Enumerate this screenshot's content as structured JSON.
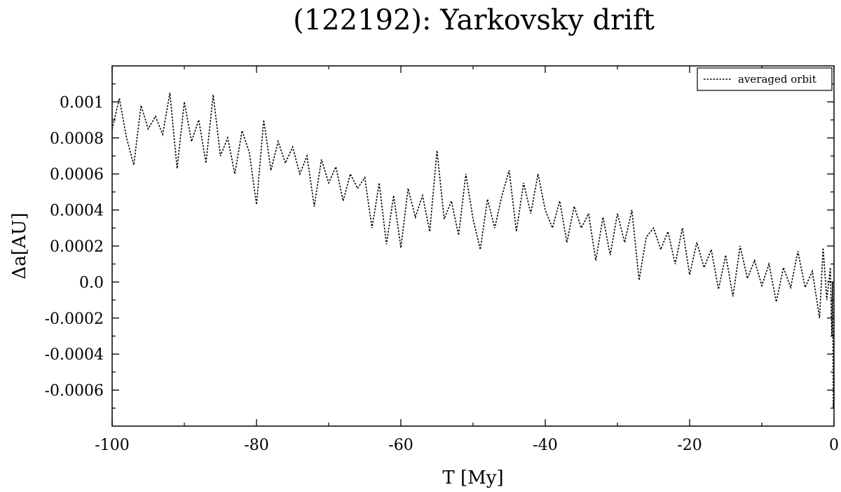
{
  "chart_data": {
    "type": "line",
    "title": "(122192): Yarkovsky drift",
    "xlabel": "T [My]",
    "ylabel": "Δa[AU]",
    "xlim": [
      -100,
      0
    ],
    "ylim": [
      -0.0008,
      0.0012
    ],
    "xticks": [
      -100,
      -80,
      -60,
      -40,
      -20,
      0
    ],
    "xtick_labels": [
      "-100",
      "-80",
      "-60",
      "-40",
      "-20",
      "0"
    ],
    "yticks": [
      0.001,
      0.0008,
      0.0006,
      0.0004,
      0.0002,
      0.0,
      -0.0002,
      -0.0004,
      -0.0006
    ],
    "ytick_labels": [
      "0.001",
      "0.0008",
      "0.0006",
      "0.0004",
      "0.0002",
      "0.0",
      "-0.0002",
      "-0.0004",
      "-0.0006"
    ],
    "grid": false,
    "legend": {
      "position": "top-right",
      "entries": [
        "averaged orbit"
      ]
    },
    "series": [
      {
        "name": "averaged orbit",
        "color": "#000000",
        "style": "dotted",
        "x": [
          -100,
          -99,
          -98,
          -97,
          -96,
          -95,
          -94,
          -93,
          -92,
          -91,
          -90,
          -89,
          -88,
          -87,
          -86,
          -85,
          -84,
          -83,
          -82,
          -81,
          -80,
          -79,
          -78,
          -77,
          -76,
          -75,
          -74,
          -73,
          -72,
          -71,
          -70,
          -69,
          -68,
          -67,
          -66,
          -65,
          -64,
          -63,
          -62,
          -61,
          -60,
          -59,
          -58,
          -57,
          -56,
          -55,
          -54,
          -53,
          -52,
          -51,
          -50,
          -49,
          -48,
          -47,
          -46,
          -45,
          -44,
          -43,
          -42,
          -41,
          -40,
          -39,
          -38,
          -37,
          -36,
          -35,
          -34,
          -33,
          -32,
          -31,
          -30,
          -29,
          -28,
          -27,
          -26,
          -25,
          -24,
          -23,
          -22,
          -21,
          -20,
          -19,
          -18,
          -17,
          -16,
          -15,
          -14,
          -13,
          -12,
          -11,
          -10,
          -9,
          -8,
          -7,
          -6,
          -5,
          -4,
          -3,
          -2,
          -1.5,
          -1,
          -0.5,
          -0.3,
          -0.2,
          -0.1,
          0
        ],
        "y": [
          0.00085,
          0.00102,
          0.0008,
          0.00065,
          0.00098,
          0.00085,
          0.00092,
          0.00082,
          0.00105,
          0.00063,
          0.001,
          0.00078,
          0.0009,
          0.00066,
          0.00104,
          0.0007,
          0.0008,
          0.0006,
          0.00084,
          0.00072,
          0.00043,
          0.0009,
          0.00062,
          0.00078,
          0.00066,
          0.00075,
          0.0006,
          0.0007,
          0.00042,
          0.00068,
          0.00055,
          0.00064,
          0.00045,
          0.0006,
          0.00052,
          0.00058,
          0.0003,
          0.00055,
          0.00021,
          0.00048,
          0.00019,
          0.00052,
          0.00036,
          0.00048,
          0.00028,
          0.00073,
          0.00035,
          0.00045,
          0.00026,
          0.0006,
          0.00035,
          0.00018,
          0.00046,
          0.0003,
          0.00048,
          0.00062,
          0.00028,
          0.00055,
          0.00038,
          0.0006,
          0.0004,
          0.0003,
          0.00045,
          0.00022,
          0.00042,
          0.0003,
          0.00038,
          0.00012,
          0.00036,
          0.00015,
          0.00038,
          0.00022,
          0.0004,
          1e-05,
          0.00025,
          0.0003,
          0.00018,
          0.00028,
          0.0001,
          0.0003,
          4e-05,
          0.00022,
          8e-05,
          0.00018,
          -4e-05,
          0.00015,
          -8e-05,
          0.0002,
          2e-05,
          0.00012,
          -2e-05,
          0.0001,
          -0.00011,
          8e-05,
          -3e-05,
          0.00017,
          -3e-05,
          6e-05,
          -0.0002,
          0.00019,
          -0.0001,
          8e-05,
          -0.0003,
          0.0,
          -0.0007,
          -0.00065
        ]
      }
    ]
  }
}
